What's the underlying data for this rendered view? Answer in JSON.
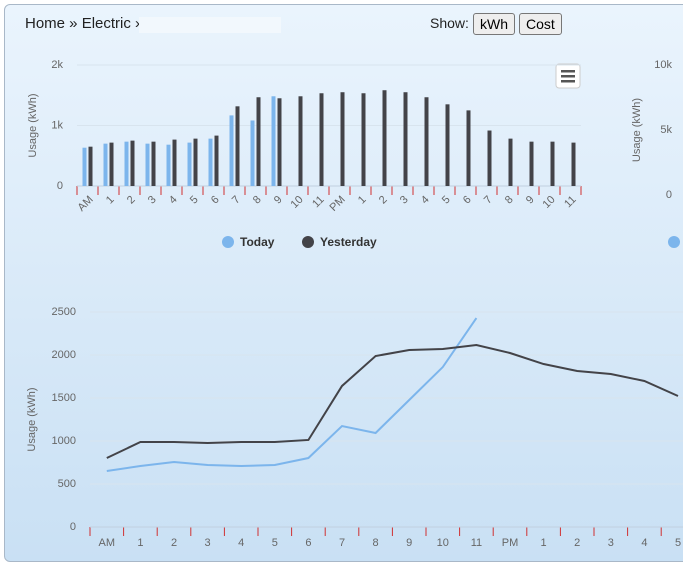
{
  "header": {
    "breadcrumb": "Home » Electric »",
    "show_label": "Show:",
    "buttons": [
      "kWh",
      "Cost"
    ]
  },
  "chart_data": [
    {
      "type": "bar",
      "y_axis_label": "Usage (kWh)",
      "y2_axis_label": "Usage (kWh)",
      "categories": [
        "AM",
        "1",
        "2",
        "3",
        "4",
        "5",
        "6",
        "7",
        "8",
        "9",
        "10",
        "11",
        "PM",
        "1",
        "2",
        "3",
        "4",
        "5",
        "6",
        "7",
        "8",
        "9",
        "10",
        "11"
      ],
      "series": [
        {
          "name": "Today",
          "color": "#7cb5ec",
          "values": [
            633,
            700,
            733,
            700,
            683,
            717,
            783,
            1167,
            1083,
            1483,
            null,
            null,
            null,
            null,
            null,
            null,
            null,
            null,
            null,
            null,
            null,
            null,
            null,
            null
          ]
        },
        {
          "name": "Yesterday",
          "color": "#434348",
          "values": [
            650,
            717,
            750,
            733,
            767,
            783,
            833,
            1317,
            1467,
            1450,
            1483,
            1533,
            1550,
            1533,
            1583,
            1550,
            1467,
            1350,
            1250,
            917,
            783,
            733,
            733,
            717
          ]
        }
      ],
      "ylim": [
        0,
        2000
      ],
      "yticks": [
        0,
        {
          "value": 1000,
          "label": "1k"
        },
        {
          "value": 2000,
          "label": "2k"
        }
      ],
      "y2lim": [
        0,
        10000
      ],
      "y2ticks": [
        0,
        {
          "value": 5000,
          "label": "5k"
        },
        {
          "value": 10000,
          "label": "10k"
        }
      ],
      "grid": true
    },
    {
      "type": "line",
      "y_axis_label": "Usage (kWh)",
      "categories": [
        "AM",
        "1",
        "2",
        "3",
        "4",
        "5",
        "6",
        "7",
        "8",
        "9",
        "10",
        "11",
        "PM",
        "1",
        "2",
        "3",
        "4",
        "5"
      ],
      "series": [
        {
          "name": "Today",
          "color": "#7cb5ec",
          "values": [
            651,
            709,
            756,
            721,
            709,
            721,
            802,
            1174,
            1093,
            1477,
            1860,
            2430,
            null,
            null,
            null,
            null,
            null,
            null
          ]
        },
        {
          "name": "Yesterday",
          "color": "#434348",
          "values": [
            802,
            988,
            988,
            977,
            988,
            988,
            1012,
            1640,
            1988,
            2058,
            2070,
            2116,
            2023,
            1895,
            1814,
            1779,
            1698,
            1523
          ]
        }
      ],
      "ylim": [
        0,
        2500
      ],
      "yticks": [
        0,
        500,
        1000,
        1500,
        2000,
        2500
      ],
      "grid": true
    }
  ]
}
